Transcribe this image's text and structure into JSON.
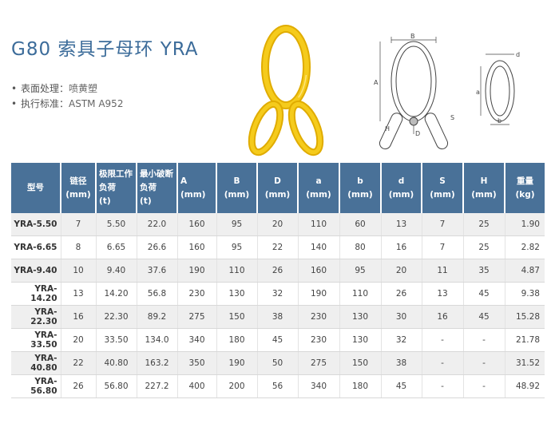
{
  "title": "G80 索具子母环 YRA",
  "specs": [
    {
      "label": "表面处理：",
      "value": "喷黄塑"
    },
    {
      "label": "执行标准：",
      "value": "ASTM A952"
    }
  ],
  "drawing": {
    "labels": [
      "B",
      "A",
      "D",
      "H",
      "S",
      "d",
      "a",
      "b"
    ]
  },
  "colors": {
    "title": "#3c6c9a",
    "header_bg": "#497198",
    "alt_row": "#efefef",
    "product_yellow": "#f2c200"
  },
  "table": {
    "headers": [
      [
        "型号"
      ],
      [
        "链径",
        "(mm)"
      ],
      [
        "极限工作",
        "负荷",
        "(t)"
      ],
      [
        "最小破断",
        "负荷",
        "(t)"
      ],
      [
        "A  (mm)"
      ],
      [
        "B",
        "(mm)"
      ],
      [
        "D",
        "(mm)"
      ],
      [
        "a",
        "(mm)"
      ],
      [
        "b",
        "(mm)"
      ],
      [
        "d",
        "(mm)"
      ],
      [
        "S",
        "(mm)"
      ],
      [
        "H",
        "(mm)"
      ],
      [
        "重量",
        "(kg)"
      ]
    ],
    "rows": [
      [
        "YRA-5.50",
        "7",
        "5.50",
        "22.0",
        "160",
        "95",
        "20",
        "110",
        "60",
        "13",
        "7",
        "25",
        "1.90"
      ],
      [
        "YRA-6.65",
        "8",
        "6.65",
        "26.6",
        "160",
        "95",
        "22",
        "140",
        "80",
        "16",
        "7",
        "25",
        "2.82"
      ],
      [
        "YRA-9.40",
        "10",
        "9.40",
        "37.6",
        "190",
        "110",
        "26",
        "160",
        "95",
        "20",
        "11",
        "35",
        "4.87"
      ],
      [
        "YRA-14.20",
        "13",
        "14.20",
        "56.8",
        "230",
        "130",
        "32",
        "190",
        "110",
        "26",
        "13",
        "45",
        "9.38"
      ],
      [
        "YRA-22.30",
        "16",
        "22.30",
        "89.2",
        "275",
        "150",
        "38",
        "230",
        "130",
        "30",
        "16",
        "45",
        "15.28"
      ],
      [
        "YRA-33.50",
        "20",
        "33.50",
        "134.0",
        "340",
        "180",
        "45",
        "230",
        "130",
        "32",
        "-",
        "-",
        "21.78"
      ],
      [
        "YRA-40.80",
        "22",
        "40.80",
        "163.2",
        "350",
        "190",
        "50",
        "275",
        "150",
        "38",
        "-",
        "-",
        "31.52"
      ],
      [
        "YRA-56.80",
        "26",
        "56.80",
        "227.2",
        "400",
        "200",
        "56",
        "340",
        "180",
        "45",
        "-",
        "-",
        "48.92"
      ]
    ]
  }
}
